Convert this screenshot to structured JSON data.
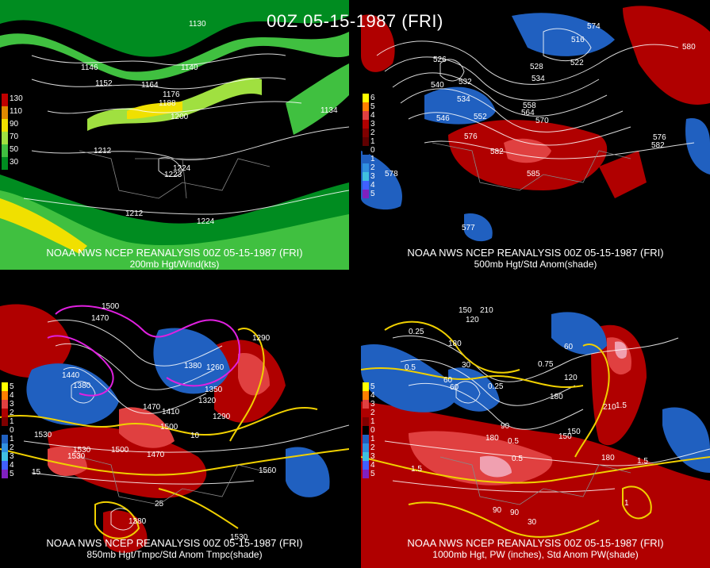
{
  "header": {
    "title": "00Z 05-15-1987 (FRI)"
  },
  "panels": [
    {
      "caption1": "NOAA NWS NCEP REANALYSIS 00Z 05-15-1987 (FRI)",
      "caption2": "200mb Hgt/Wind(kts)",
      "legend": [
        {
          "label": "130",
          "color": "#c00000"
        },
        {
          "label": "110",
          "color": "#e08a00"
        },
        {
          "label": "90",
          "color": "#f0e000"
        },
        {
          "label": "70",
          "color": "#a0e040"
        },
        {
          "label": "50",
          "color": "#40c040"
        },
        {
          "label": "30",
          "color": "#008c20"
        }
      ],
      "labels": [
        "1152",
        "1164",
        "1176",
        "1188",
        "1140",
        "1200",
        "1212",
        "1224",
        "1224",
        "1212",
        "1146",
        "1134",
        "1130",
        "1223"
      ]
    },
    {
      "caption1": "NOAA NWS NCEP REANALYSIS 00Z 05-15-1987 (FRI)",
      "caption2": "500mb Hgt/Std Anom(shade)",
      "legend": [
        {
          "label": "6",
          "color": "#ffff00"
        },
        {
          "label": "5",
          "color": "#ff8000"
        },
        {
          "label": "4",
          "color": "#e04040"
        },
        {
          "label": "3",
          "color": "#b00000"
        },
        {
          "label": "2",
          "color": "#800000"
        },
        {
          "label": "1",
          "color": "#600000"
        },
        {
          "label": "0",
          "color": "#000000"
        },
        {
          "label": "1",
          "color": "#2060c0"
        },
        {
          "label": "2",
          "color": "#3090e0"
        },
        {
          "label": "3",
          "color": "#40c0e0"
        },
        {
          "label": "4",
          "color": "#4060ff"
        },
        {
          "label": "5",
          "color": "#8020c0"
        }
      ],
      "labels": [
        "540",
        "532",
        "534",
        "546",
        "552",
        "558",
        "564",
        "570",
        "576",
        "582",
        "528",
        "534",
        "522",
        "516",
        "585",
        "582",
        "576",
        "580",
        "574",
        "526",
        "578",
        "577"
      ]
    },
    {
      "caption1": "NOAA NWS NCEP REANALYSIS 00Z 05-15-1987 (FRI)",
      "caption2": "850mb Hgt/Tmpc/Std Anom Tmpc(shade)",
      "legend": [
        {
          "label": "5",
          "color": "#ffff00"
        },
        {
          "label": "4",
          "color": "#ff8000"
        },
        {
          "label": "3",
          "color": "#e04040"
        },
        {
          "label": "2",
          "color": "#b00000"
        },
        {
          "label": "1",
          "color": "#800000"
        },
        {
          "label": "0",
          "color": "#000000"
        },
        {
          "label": "1",
          "color": "#2060c0"
        },
        {
          "label": "2",
          "color": "#3090e0"
        },
        {
          "label": "3",
          "color": "#40c0e0"
        },
        {
          "label": "4",
          "color": "#4060ff"
        },
        {
          "label": "5",
          "color": "#8020c0"
        }
      ],
      "labels": [
        "1500",
        "1470",
        "1440",
        "1380",
        "1290",
        "1260",
        "1380",
        "1350",
        "1320",
        "1290",
        "1530",
        "1530",
        "1500",
        "1470",
        "1500",
        "1560",
        "1530",
        "1470",
        "1380",
        "1410",
        "15",
        "10",
        "25",
        "1530"
      ]
    },
    {
      "caption1": "NOAA NWS NCEP REANALYSIS 00Z 05-15-1987 (FRI)",
      "caption2": "1000mb Hgt, PW (inches), Std Anom PW(shade)",
      "legend": [
        {
          "label": "5",
          "color": "#ffff00"
        },
        {
          "label": "4",
          "color": "#ff8000"
        },
        {
          "label": "3",
          "color": "#e04040"
        },
        {
          "label": "2",
          "color": "#b00000"
        },
        {
          "label": "1",
          "color": "#800000"
        },
        {
          "label": "0",
          "color": "#000000"
        },
        {
          "label": "1",
          "color": "#2060c0"
        },
        {
          "label": "2",
          "color": "#3090e0"
        },
        {
          "label": "3",
          "color": "#40c0e0"
        },
        {
          "label": "4",
          "color": "#4060ff"
        },
        {
          "label": "5",
          "color": "#8020c0"
        }
      ],
      "labels": [
        "150",
        "120",
        "210",
        "180",
        "0.25",
        "0.5",
        "30",
        "60",
        "0.25",
        "0.75",
        "180",
        "90",
        "60",
        "120",
        "180",
        "150",
        "210",
        "1.5",
        "1.5",
        "0.5",
        "90",
        "0.5",
        "150",
        "180",
        "90",
        "1.5",
        "1",
        "30",
        "60"
      ]
    }
  ]
}
